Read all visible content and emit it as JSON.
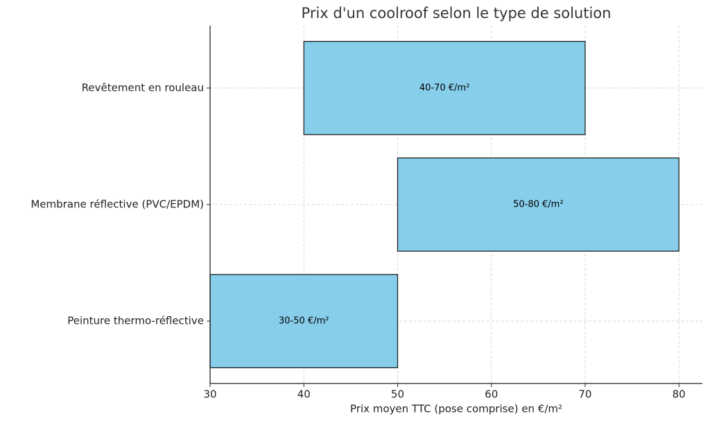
{
  "chart_data": {
    "type": "range-bar",
    "title": "Prix d'un coolroof selon le type de solution",
    "x_label": "Prix moyen TTC (pose comprise) en €/m²",
    "categories": [
      "Revêtement en rouleau",
      "Membrane réflective (PVC/EPDM)",
      "Peinture thermo-réflective"
    ],
    "low": [
      40,
      50,
      30
    ],
    "high": [
      70,
      80,
      50
    ],
    "value_labels": [
      "40-70 €/m²",
      "50-80 €/m²",
      "30-50 €/m²"
    ],
    "color": "#87ceeb",
    "xlim": [
      30,
      82.5
    ],
    "xticks": [
      30,
      40,
      50,
      60,
      70,
      80
    ],
    "grid": true
  }
}
